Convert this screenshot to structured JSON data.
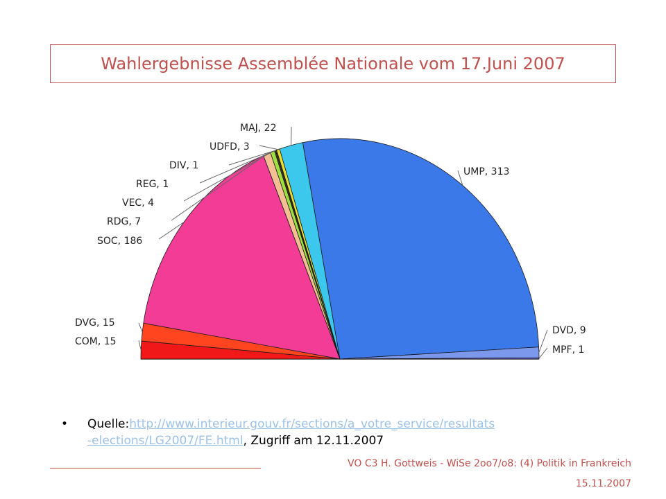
{
  "title": "Wahlergebnisse Assemblée Nationale vom 17.Juni 2007",
  "chart_data": {
    "type": "pie",
    "subtype": "semicircle",
    "title": "Wahlergebnisse Assemblée Nationale vom 17.Juni 2007",
    "categories": [
      "COM",
      "DVG",
      "SOC",
      "RDG",
      "VEC",
      "REG",
      "DIV",
      "UDFD",
      "MAJ",
      "UMP",
      "DVD",
      "MPF"
    ],
    "values": [
      15,
      15,
      186,
      7,
      4,
      1,
      1,
      3,
      22,
      313,
      9,
      1
    ],
    "labels": [
      "COM, 15",
      "DVG, 15",
      "SOC, 186",
      "RDG, 7",
      "VEC, 4",
      "REG, 1",
      "DIV, 1",
      "UDFD, 3",
      "MAJ, 22",
      "UMP, 313",
      "DVD, 9",
      "MPF, 1"
    ],
    "colors": [
      "#f01818",
      "#ff4420",
      "#f23c96",
      "#f3c094",
      "#9fe040",
      "#6a4a10",
      "#3a3a3a",
      "#e8e030",
      "#3cc8ec",
      "#3b78e8",
      "#7c98ec",
      "#5a5ae6"
    ]
  },
  "source": {
    "bullet": "•",
    "prefix": "Quelle:",
    "url_line1": "http://www.interieur.gouv.fr/sections/a_votre_service/resultats",
    "url_line2": "-elections/LG2007/FE.html",
    "suffix": ", Zugriff am 12.11.2007"
  },
  "footer": {
    "text": "VO C3 H. Gottweis - WiSe 2oo7/o8: (4) Politik in Frankreich",
    "date": "15.11.2007"
  },
  "colors": {
    "accent": "#c0504d",
    "link": "#9cc2e5"
  }
}
